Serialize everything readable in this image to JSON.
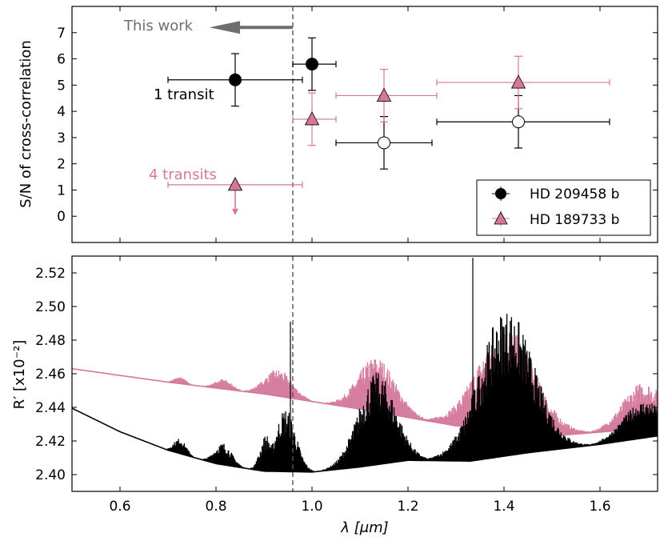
{
  "chart_data": [
    {
      "type": "scatter",
      "panel": "top",
      "ylabel": "S/N of cross-correlation",
      "xlim": [
        0.5,
        1.72
      ],
      "ylim": [
        -1,
        8
      ],
      "yticks": [
        "0",
        "1",
        "2",
        "3",
        "4",
        "5",
        "6",
        "7"
      ],
      "annotations": {
        "this_work": "This work",
        "one_transit": "1 transit",
        "four_transits": "4 transits"
      },
      "legend": {
        "position": "lower-right",
        "entries": [
          {
            "label": "HD 209458 b",
            "marker": "circle",
            "color": "#000000"
          },
          {
            "label": "HD 189733 b",
            "marker": "triangle",
            "color": "#d4779a"
          }
        ]
      },
      "series": [
        {
          "name": "HD 209458 b",
          "color": "#000000",
          "points": [
            {
              "x": 0.84,
              "y": 5.2,
              "xerr": [
                0.7,
                0.98
              ],
              "yerr": [
                4.2,
                6.2
              ],
              "filled": true
            },
            {
              "x": 1.0,
              "y": 5.8,
              "xerr": [
                0.96,
                1.05
              ],
              "yerr": [
                4.8,
                6.8
              ],
              "filled": true
            },
            {
              "x": 1.15,
              "y": 2.8,
              "xerr": [
                1.05,
                1.25
              ],
              "yerr": [
                1.8,
                3.8
              ],
              "filled": false
            },
            {
              "x": 1.43,
              "y": 3.6,
              "xerr": [
                1.26,
                1.62
              ],
              "yerr": [
                2.6,
                4.6
              ],
              "filled": false
            }
          ]
        },
        {
          "name": "HD 189733 b",
          "color": "#d4779a",
          "points": [
            {
              "x": 0.84,
              "y": 1.2,
              "xerr": [
                0.7,
                0.98
              ],
              "upper_limit": true
            },
            {
              "x": 1.0,
              "y": 3.7,
              "xerr": [
                0.96,
                1.05
              ],
              "yerr": [
                2.7,
                4.7
              ]
            },
            {
              "x": 1.15,
              "y": 4.6,
              "xerr": [
                1.05,
                1.26
              ],
              "yerr": [
                3.6,
                5.6
              ]
            },
            {
              "x": 1.43,
              "y": 5.1,
              "xerr": [
                1.26,
                1.62
              ],
              "yerr": [
                4.1,
                6.1
              ]
            }
          ]
        }
      ]
    },
    {
      "type": "line",
      "panel": "bottom",
      "xlabel": "λ [μm]",
      "ylabel": "R′ [x10⁻²]",
      "xlim": [
        0.5,
        1.72
      ],
      "ylim": [
        2.39,
        2.53
      ],
      "xticks": [
        "0.6",
        "0.8",
        "1.0",
        "1.2",
        "1.4",
        "1.6"
      ],
      "yticks": [
        "2.40",
        "2.42",
        "2.44",
        "2.46",
        "2.48",
        "2.50",
        "2.52"
      ],
      "series": [
        {
          "name": "HD 209458 b",
          "color": "#000000",
          "baseline": [
            [
              0.5,
              2.4395
            ],
            [
              0.6,
              2.4255
            ],
            [
              0.7,
              2.4145
            ],
            [
              0.8,
              2.4065
            ],
            [
              0.9,
              2.402
            ],
            [
              1.0,
              2.4015
            ],
            [
              1.1,
              2.4045
            ],
            [
              1.2,
              2.4085
            ],
            [
              1.33,
              2.408
            ],
            [
              1.45,
              2.413
            ],
            [
              1.6,
              2.418
            ],
            [
              1.72,
              2.423
            ]
          ],
          "bands": [
            {
              "center": 0.725,
              "width": 0.018,
              "height": 0.009
            },
            {
              "center": 0.815,
              "width": 0.025,
              "height": 0.013
            },
            {
              "center": 0.905,
              "width": 0.018,
              "height": 0.022
            },
            {
              "center": 0.945,
              "width": 0.03,
              "height": 0.038
            },
            {
              "center": 1.135,
              "width": 0.055,
              "height": 0.055
            },
            {
              "center": 1.405,
              "width": 0.08,
              "height": 0.088
            },
            {
              "center": 1.69,
              "width": 0.06,
              "height": 0.022
            }
          ],
          "spikes": [
            [
              0.955,
              2.491
            ],
            [
              1.335,
              2.529
            ]
          ]
        },
        {
          "name": "HD 189733 b",
          "color": "#d4779a",
          "baseline": [
            [
              0.5,
              2.463
            ],
            [
              0.7,
              2.455
            ],
            [
              0.9,
              2.448
            ],
            [
              1.1,
              2.439
            ],
            [
              1.3,
              2.429
            ],
            [
              1.5,
              2.423
            ],
            [
              1.72,
              2.428
            ]
          ],
          "bands": [
            {
              "center": 0.725,
              "width": 0.018,
              "height": 0.004
            },
            {
              "center": 0.815,
              "width": 0.025,
              "height": 0.006
            },
            {
              "center": 0.93,
              "width": 0.04,
              "height": 0.016
            },
            {
              "center": 1.135,
              "width": 0.055,
              "height": 0.033
            },
            {
              "center": 1.405,
              "width": 0.085,
              "height": 0.062
            },
            {
              "center": 1.69,
              "width": 0.06,
              "height": 0.028
            }
          ]
        }
      ]
    }
  ],
  "shared": {
    "vline_x": 0.96,
    "colors": {
      "black": "#000000",
      "pink": "#d4779a",
      "annotation_gray": "#6e6e6e"
    }
  }
}
